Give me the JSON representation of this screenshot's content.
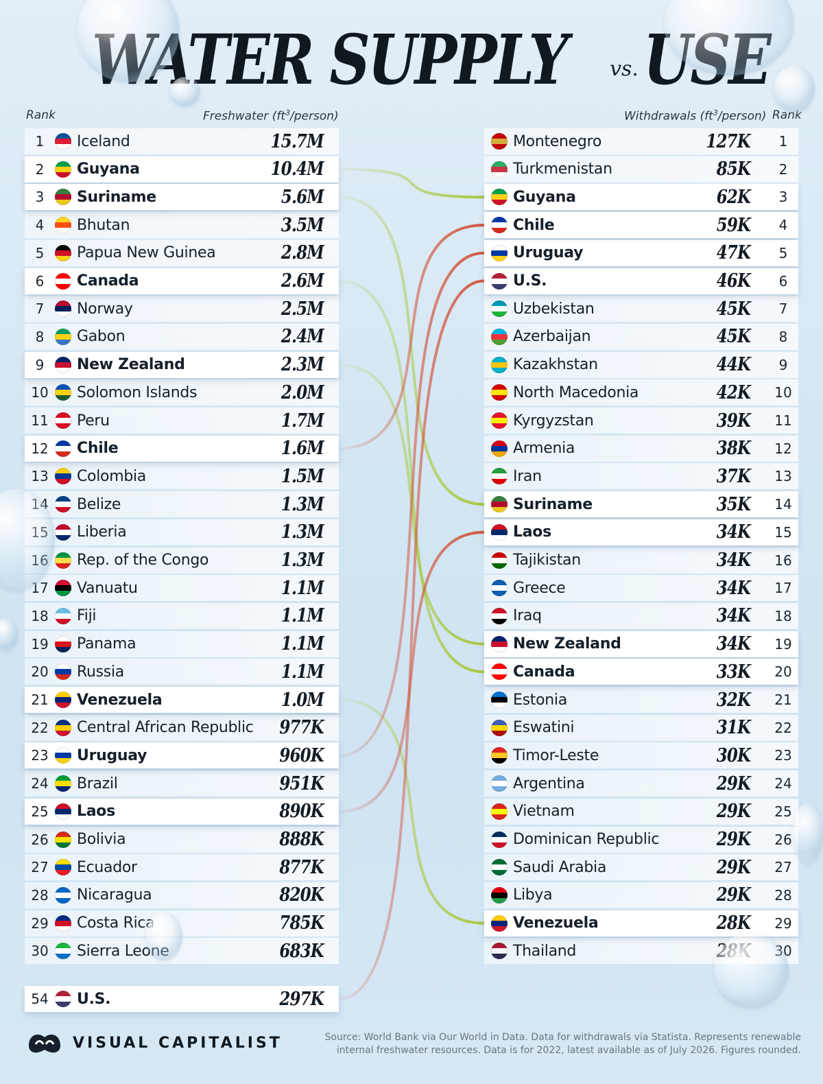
{
  "title": {
    "part1": "WATER SUPPLY",
    "vs": "vs.",
    "part2": "USE"
  },
  "left_header": {
    "rank": "Rank",
    "metric": "Freshwater (ft",
    "metric_sup": "3",
    "metric_end": "/person)"
  },
  "right_header": {
    "metric": "Withdrawals (ft",
    "metric_sup": "3",
    "metric_end": "/person)",
    "rank": "Rank"
  },
  "colors": {
    "green_link": "#a8c83c",
    "red_link": "#d2553d",
    "left_bg": "#e8f1f8"
  },
  "chart_data": [
    {
      "type": "table",
      "title": "WATER SUPPLY",
      "column_headers": [
        "Rank",
        "Freshwater (ft³/person)"
      ],
      "rows": [
        {
          "rank": "1",
          "country": "Iceland",
          "value": "15.7M",
          "highlight": false,
          "flag": [
            "#02529c",
            "#dc1e35",
            "#ffffff"
          ]
        },
        {
          "rank": "2",
          "country": "Guyana",
          "value": "10.4M",
          "highlight": true,
          "flag": [
            "#009e49",
            "#fcd116",
            "#ce1126"
          ]
        },
        {
          "rank": "3",
          "country": "Suriname",
          "value": "5.6M",
          "highlight": true,
          "flag": [
            "#377e3f",
            "#b40a2d",
            "#ecc81d"
          ]
        },
        {
          "rank": "4",
          "country": "Bhutan",
          "value": "3.5M",
          "highlight": false,
          "flag": [
            "#ffd520",
            "#ff4e12",
            "#ffffff"
          ]
        },
        {
          "rank": "5",
          "country": "Papua New Guinea",
          "value": "2.8M",
          "highlight": false,
          "flag": [
            "#000000",
            "#ce1126",
            "#fcd116"
          ]
        },
        {
          "rank": "6",
          "country": "Canada",
          "value": "2.6M",
          "highlight": true,
          "flag": [
            "#ff0000",
            "#ffffff",
            "#ff0000"
          ]
        },
        {
          "rank": "7",
          "country": "Norway",
          "value": "2.5M",
          "highlight": false,
          "flag": [
            "#ba0c2f",
            "#00205b",
            "#ffffff"
          ]
        },
        {
          "rank": "8",
          "country": "Gabon",
          "value": "2.4M",
          "highlight": false,
          "flag": [
            "#009e60",
            "#fcd116",
            "#3a75c4"
          ]
        },
        {
          "rank": "9",
          "country": "New Zealand",
          "value": "2.3M",
          "highlight": true,
          "flag": [
            "#012169",
            "#c8102e",
            "#ffffff"
          ]
        },
        {
          "rank": "10",
          "country": "Solomon Islands",
          "value": "2.0M",
          "highlight": false,
          "flag": [
            "#0051ba",
            "#fcd116",
            "#215b33"
          ]
        },
        {
          "rank": "11",
          "country": "Peru",
          "value": "1.7M",
          "highlight": false,
          "flag": [
            "#d91023",
            "#ffffff",
            "#d91023"
          ]
        },
        {
          "rank": "12",
          "country": "Chile",
          "value": "1.6M",
          "highlight": true,
          "flag": [
            "#0039a6",
            "#ffffff",
            "#d52b1e"
          ]
        },
        {
          "rank": "13",
          "country": "Colombia",
          "value": "1.5M",
          "highlight": false,
          "flag": [
            "#fcd116",
            "#003893",
            "#ce1126"
          ]
        },
        {
          "rank": "14",
          "country": "Belize",
          "value": "1.3M",
          "highlight": false,
          "flag": [
            "#003f87",
            "#ffffff",
            "#ce1126"
          ]
        },
        {
          "rank": "15",
          "country": "Liberia",
          "value": "1.3M",
          "highlight": false,
          "flag": [
            "#bf0a30",
            "#ffffff",
            "#002868"
          ]
        },
        {
          "rank": "16",
          "country": "Rep. of the Congo",
          "value": "1.3M",
          "highlight": false,
          "flag": [
            "#009543",
            "#fbde4a",
            "#dc241f"
          ]
        },
        {
          "rank": "17",
          "country": "Vanuatu",
          "value": "1.1M",
          "highlight": false,
          "flag": [
            "#d21034",
            "#000000",
            "#009543"
          ]
        },
        {
          "rank": "18",
          "country": "Fiji",
          "value": "1.1M",
          "highlight": false,
          "flag": [
            "#68bfe5",
            "#ffffff",
            "#ce1126"
          ]
        },
        {
          "rank": "19",
          "country": "Panama",
          "value": "1.1M",
          "highlight": false,
          "flag": [
            "#ffffff",
            "#da121a",
            "#072357"
          ]
        },
        {
          "rank": "20",
          "country": "Russia",
          "value": "1.1M",
          "highlight": false,
          "flag": [
            "#ffffff",
            "#0039a6",
            "#d52b1e"
          ]
        },
        {
          "rank": "21",
          "country": "Venezuela",
          "value": "1.0M",
          "highlight": true,
          "flag": [
            "#ffcc00",
            "#00247d",
            "#cf142b"
          ]
        },
        {
          "rank": "22",
          "country": "Central African Republic",
          "value": "977K",
          "highlight": false,
          "flag": [
            "#003082",
            "#ffce00",
            "#d21034"
          ]
        },
        {
          "rank": "23",
          "country": "Uruguay",
          "value": "960K",
          "highlight": true,
          "flag": [
            "#ffffff",
            "#0038a8",
            "#fcd116"
          ]
        },
        {
          "rank": "24",
          "country": "Brazil",
          "value": "951K",
          "highlight": false,
          "flag": [
            "#009c3b",
            "#ffdf00",
            "#002776"
          ]
        },
        {
          "rank": "25",
          "country": "Laos",
          "value": "890K",
          "highlight": true,
          "flag": [
            "#ce1126",
            "#002868",
            "#ffffff"
          ]
        },
        {
          "rank": "26",
          "country": "Bolivia",
          "value": "888K",
          "highlight": false,
          "flag": [
            "#d52b1e",
            "#f9e300",
            "#007934"
          ]
        },
        {
          "rank": "27",
          "country": "Ecuador",
          "value": "877K",
          "highlight": false,
          "flag": [
            "#ffdd00",
            "#034ea2",
            "#ed1c24"
          ]
        },
        {
          "rank": "28",
          "country": "Nicaragua",
          "value": "820K",
          "highlight": false,
          "flag": [
            "#0067c6",
            "#ffffff",
            "#0067c6"
          ]
        },
        {
          "rank": "29",
          "country": "Costa Rica",
          "value": "785K",
          "highlight": false,
          "flag": [
            "#002b7f",
            "#ce1126",
            "#ffffff"
          ]
        },
        {
          "rank": "30",
          "country": "Sierra Leone",
          "value": "683K",
          "highlight": false,
          "flag": [
            "#1eb53a",
            "#ffffff",
            "#0072c6"
          ]
        },
        {
          "rank": "54",
          "country": "U.S.",
          "value": "297K",
          "highlight": true,
          "flag": [
            "#b22234",
            "#ffffff",
            "#3c3b6e"
          ]
        }
      ]
    },
    {
      "type": "table",
      "title": "USE",
      "column_headers": [
        "Withdrawals (ft³/person)",
        "Rank"
      ],
      "rows": [
        {
          "rank": "1",
          "country": "Montenegro",
          "value": "127K",
          "highlight": false,
          "flag": [
            "#c40308",
            "#d3ae3b",
            "#c40308"
          ]
        },
        {
          "rank": "2",
          "country": "Turkmenistan",
          "value": "85K",
          "highlight": false,
          "flag": [
            "#28ae66",
            "#ca3745",
            "#ffffff"
          ]
        },
        {
          "rank": "3",
          "country": "Guyana",
          "value": "62K",
          "highlight": true,
          "flag": [
            "#009e49",
            "#fcd116",
            "#ce1126"
          ]
        },
        {
          "rank": "4",
          "country": "Chile",
          "value": "59K",
          "highlight": true,
          "flag": [
            "#0039a6",
            "#ffffff",
            "#d52b1e"
          ]
        },
        {
          "rank": "5",
          "country": "Uruguay",
          "value": "47K",
          "highlight": true,
          "flag": [
            "#ffffff",
            "#0038a8",
            "#fcd116"
          ]
        },
        {
          "rank": "6",
          "country": "U.S.",
          "value": "46K",
          "highlight": true,
          "flag": [
            "#b22234",
            "#ffffff",
            "#3c3b6e"
          ]
        },
        {
          "rank": "7",
          "country": "Uzbekistan",
          "value": "45K",
          "highlight": false,
          "flag": [
            "#0099b5",
            "#ffffff",
            "#1eb53a"
          ]
        },
        {
          "rank": "8",
          "country": "Azerbaijan",
          "value": "45K",
          "highlight": false,
          "flag": [
            "#00b5e2",
            "#ef3340",
            "#509e2f"
          ]
        },
        {
          "rank": "9",
          "country": "Kazakhstan",
          "value": "44K",
          "highlight": false,
          "flag": [
            "#00afca",
            "#fec50c",
            "#00afca"
          ]
        },
        {
          "rank": "10",
          "country": "North Macedonia",
          "value": "42K",
          "highlight": false,
          "flag": [
            "#d20000",
            "#ffe600",
            "#d20000"
          ]
        },
        {
          "rank": "11",
          "country": "Kyrgyzstan",
          "value": "39K",
          "highlight": false,
          "flag": [
            "#e8112d",
            "#ffef00",
            "#e8112d"
          ]
        },
        {
          "rank": "12",
          "country": "Armenia",
          "value": "38K",
          "highlight": false,
          "flag": [
            "#d90012",
            "#0033a0",
            "#f2a800"
          ]
        },
        {
          "rank": "13",
          "country": "Iran",
          "value": "37K",
          "highlight": false,
          "flag": [
            "#239f40",
            "#ffffff",
            "#da0000"
          ]
        },
        {
          "rank": "14",
          "country": "Suriname",
          "value": "35K",
          "highlight": true,
          "flag": [
            "#377e3f",
            "#b40a2d",
            "#ecc81d"
          ]
        },
        {
          "rank": "15",
          "country": "Laos",
          "value": "34K",
          "highlight": true,
          "flag": [
            "#ce1126",
            "#002868",
            "#ffffff"
          ]
        },
        {
          "rank": "16",
          "country": "Tajikistan",
          "value": "34K",
          "highlight": false,
          "flag": [
            "#cc0000",
            "#ffffff",
            "#006600"
          ]
        },
        {
          "rank": "17",
          "country": "Greece",
          "value": "34K",
          "highlight": false,
          "flag": [
            "#0d5eaf",
            "#ffffff",
            "#0d5eaf"
          ]
        },
        {
          "rank": "18",
          "country": "Iraq",
          "value": "34K",
          "highlight": false,
          "flag": [
            "#ce1126",
            "#ffffff",
            "#000000"
          ]
        },
        {
          "rank": "19",
          "country": "New Zealand",
          "value": "34K",
          "highlight": true,
          "flag": [
            "#012169",
            "#c8102e",
            "#ffffff"
          ]
        },
        {
          "rank": "20",
          "country": "Canada",
          "value": "33K",
          "highlight": true,
          "flag": [
            "#ff0000",
            "#ffffff",
            "#ff0000"
          ]
        },
        {
          "rank": "21",
          "country": "Estonia",
          "value": "32K",
          "highlight": false,
          "flag": [
            "#0072ce",
            "#000000",
            "#ffffff"
          ]
        },
        {
          "rank": "22",
          "country": "Eswatini",
          "value": "31K",
          "highlight": false,
          "flag": [
            "#3e5eb9",
            "#ffd900",
            "#b10c0c"
          ]
        },
        {
          "rank": "23",
          "country": "Timor-Leste",
          "value": "30K",
          "highlight": false,
          "flag": [
            "#dc241f",
            "#ffc726",
            "#000000"
          ]
        },
        {
          "rank": "24",
          "country": "Argentina",
          "value": "29K",
          "highlight": false,
          "flag": [
            "#74acdf",
            "#ffffff",
            "#74acdf"
          ]
        },
        {
          "rank": "25",
          "country": "Vietnam",
          "value": "29K",
          "highlight": false,
          "flag": [
            "#da251d",
            "#ffff00",
            "#da251d"
          ]
        },
        {
          "rank": "26",
          "country": "Dominican Republic",
          "value": "29K",
          "highlight": false,
          "flag": [
            "#002d62",
            "#ffffff",
            "#ce1126"
          ]
        },
        {
          "rank": "27",
          "country": "Saudi Arabia",
          "value": "29K",
          "highlight": false,
          "flag": [
            "#006c35",
            "#ffffff",
            "#006c35"
          ]
        },
        {
          "rank": "28",
          "country": "Libya",
          "value": "29K",
          "highlight": false,
          "flag": [
            "#e70013",
            "#000000",
            "#239e46"
          ]
        },
        {
          "rank": "29",
          "country": "Venezuela",
          "value": "28K",
          "highlight": true,
          "flag": [
            "#ffcc00",
            "#00247d",
            "#cf142b"
          ]
        },
        {
          "rank": "30",
          "country": "Thailand",
          "value": "28K",
          "highlight": false,
          "flag": [
            "#a51931",
            "#f4f5f8",
            "#2d2a4a"
          ]
        }
      ]
    }
  ],
  "links": [
    {
      "from": "Guyana",
      "to": "Guyana",
      "color": "green"
    },
    {
      "from": "Suriname",
      "to": "Suriname",
      "color": "green"
    },
    {
      "from": "Canada",
      "to": "Canada",
      "color": "green"
    },
    {
      "from": "New Zealand",
      "to": "New Zealand",
      "color": "green"
    },
    {
      "from": "Venezuela",
      "to": "Venezuela",
      "color": "green"
    },
    {
      "from": "Chile",
      "to": "Chile",
      "color": "red"
    },
    {
      "from": "Uruguay",
      "to": "Uruguay",
      "color": "red"
    },
    {
      "from": "Laos",
      "to": "Laos",
      "color": "red"
    },
    {
      "from": "U.S.",
      "to": "U.S.",
      "color": "red"
    }
  ],
  "footer": {
    "brand": "VISUAL CAPITALIST",
    "source_line1": "Source: World Bank via Our World in Data. Data for withdrawals via Statista. Represents renewable",
    "source_line2": "internal freshwater resources. Data is for 2022, latest available as of July 2026. Figures rounded."
  }
}
